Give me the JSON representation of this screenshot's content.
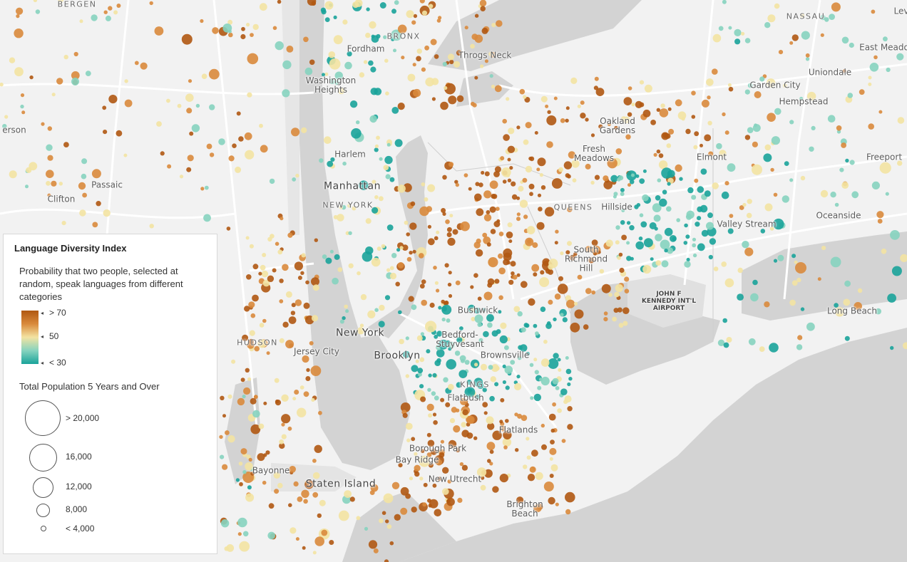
{
  "map": {
    "place_labels": [
      {
        "text": "BERGEN",
        "style": "caps"
      },
      {
        "text": "BRONX",
        "style": "caps"
      },
      {
        "text": "NASSAU",
        "style": "caps"
      },
      {
        "text": "Lev",
        "style": "normal"
      },
      {
        "text": "Fordham",
        "style": "normal"
      },
      {
        "text": "Throgs Neck",
        "style": "normal"
      },
      {
        "text": "East Meado",
        "style": "normal"
      },
      {
        "text": "Uniondale",
        "style": "normal"
      },
      {
        "text": "Washington\nHeights",
        "style": "normal"
      },
      {
        "text": "Garden City",
        "style": "normal"
      },
      {
        "text": "Hempstead",
        "style": "normal"
      },
      {
        "text": "erson",
        "style": "normal"
      },
      {
        "text": "Oakland\nGardens",
        "style": "normal"
      },
      {
        "text": "Harlem",
        "style": "normal"
      },
      {
        "text": "Fresh\nMeadows",
        "style": "normal"
      },
      {
        "text": "Elmont",
        "style": "normal"
      },
      {
        "text": "Freeport",
        "style": "normal"
      },
      {
        "text": "Passaic",
        "style": "normal"
      },
      {
        "text": "Manhattan",
        "style": "big"
      },
      {
        "text": "Clifton",
        "style": "normal"
      },
      {
        "text": "NEW YORK",
        "style": "caps"
      },
      {
        "text": "QUEENS",
        "style": "caps"
      },
      {
        "text": "Hillside",
        "style": "normal"
      },
      {
        "text": "Oceanside",
        "style": "normal"
      },
      {
        "text": "Valley Stream",
        "style": "normal"
      },
      {
        "text": "South\nRichmond\nHill",
        "style": "normal"
      },
      {
        "text": "JOHN F\nKENNEDY INT'L\nAIRPORT",
        "style": "airport"
      },
      {
        "text": "Bushwick",
        "style": "normal"
      },
      {
        "text": "Long Beach",
        "style": "normal"
      },
      {
        "text": "New York",
        "style": "big"
      },
      {
        "text": "Bedford-\nStuyvesant",
        "style": "normal"
      },
      {
        "text": "HUDSON",
        "style": "caps"
      },
      {
        "text": "Jersey City",
        "style": "normal"
      },
      {
        "text": "Brooklyn",
        "style": "big"
      },
      {
        "text": "Brownsville",
        "style": "normal"
      },
      {
        "text": "KINGS",
        "style": "caps"
      },
      {
        "text": "Flatbush",
        "style": "normal"
      },
      {
        "text": "Flatlands",
        "style": "normal"
      },
      {
        "text": "Borough Park",
        "style": "normal"
      },
      {
        "text": "Bay Ridge",
        "style": "normal"
      },
      {
        "text": "Bayonne",
        "style": "normal"
      },
      {
        "text": "New Utrecht",
        "style": "normal"
      },
      {
        "text": "Staten Island",
        "style": "big"
      },
      {
        "text": "Brighton\nBeach",
        "style": "normal"
      }
    ]
  },
  "legend": {
    "title": "Language Diversity Index",
    "description": "Probability that two people, selected at random, speak languages from different categories",
    "ramp_labels": {
      "high": "> 70",
      "mid": "50",
      "low": "< 30"
    },
    "ramp_colors": [
      "#b05812",
      "#d98a3c",
      "#f3e3a2",
      "#86d3bf",
      "#1aa39a"
    ],
    "size_title": "Total Population 5 Years and Over",
    "size_classes": [
      {
        "label": "> 20,000"
      },
      {
        "label": "16,000"
      },
      {
        "label": "12,000"
      },
      {
        "label": "8,000"
      },
      {
        "label": "< 4,000"
      }
    ]
  }
}
